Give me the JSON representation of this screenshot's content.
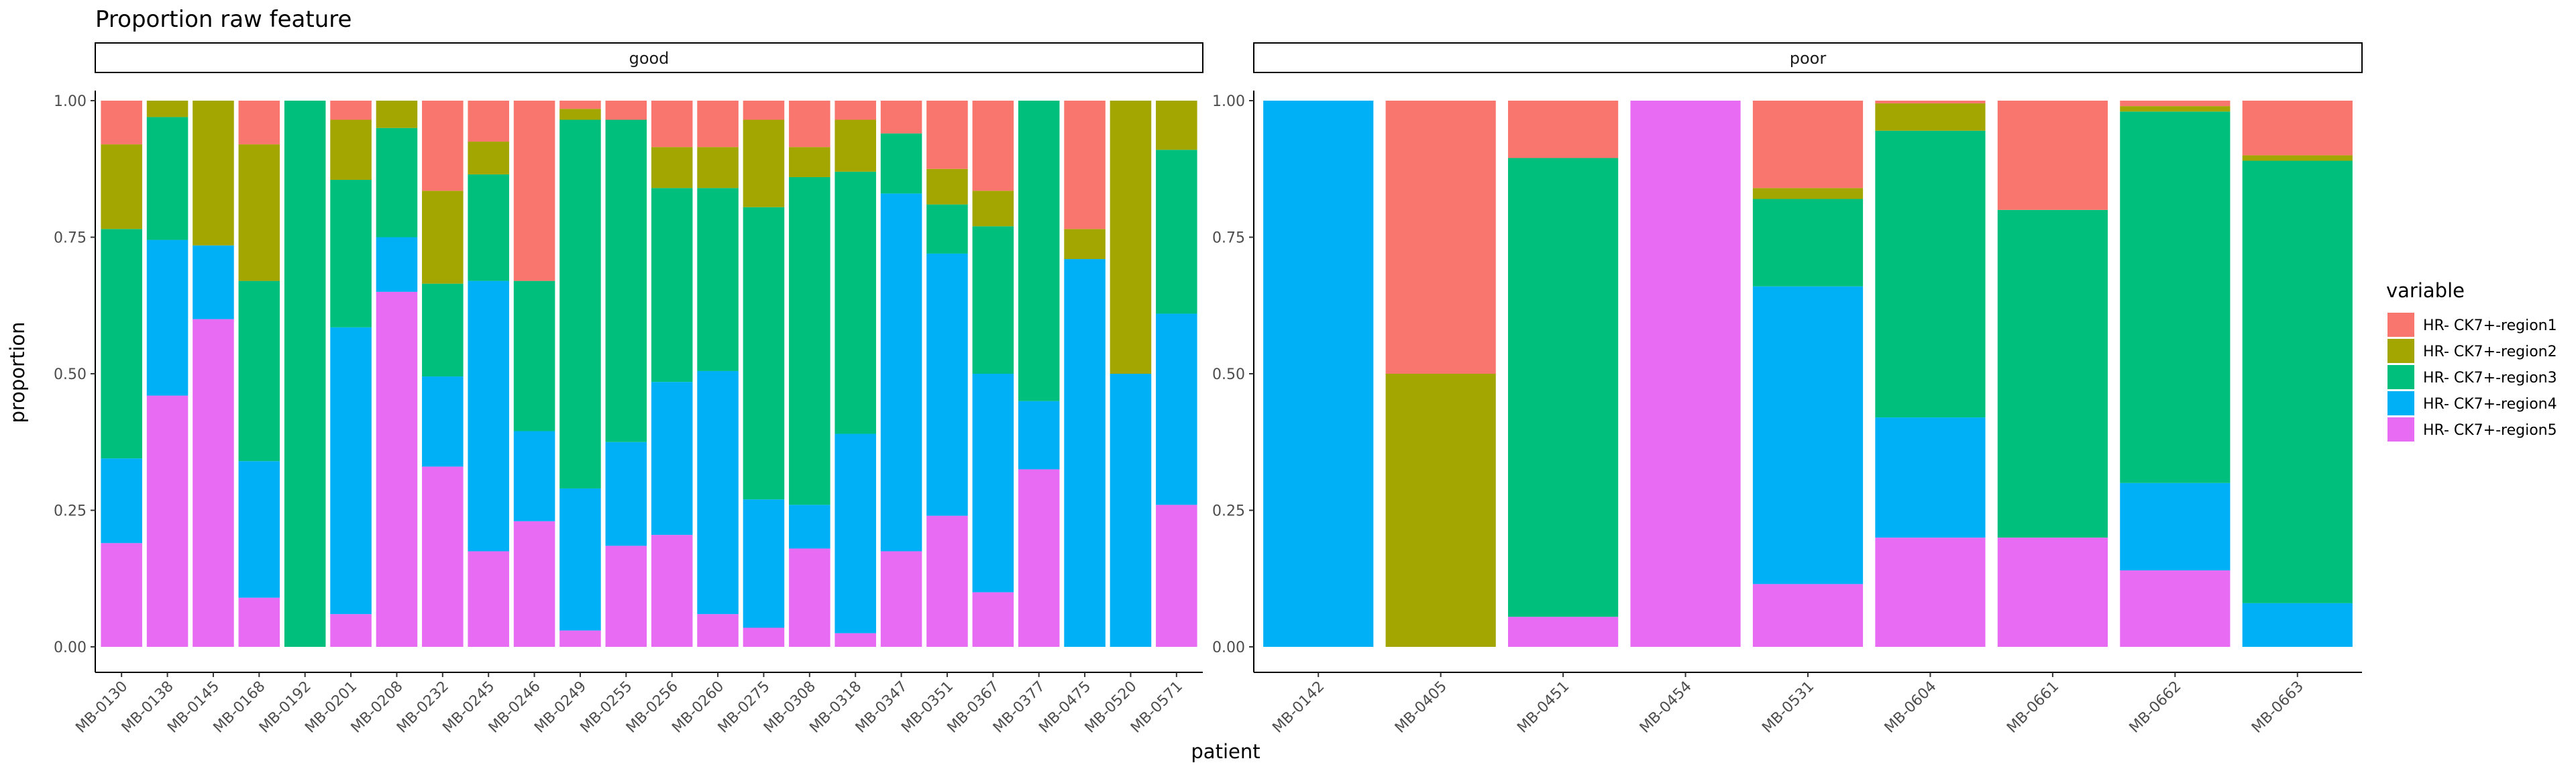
{
  "chart_data": {
    "type": "bar",
    "stacked": true,
    "title": "Proportion raw feature",
    "xlabel": "patient",
    "ylabel": "proportion",
    "ylim": [
      0,
      1
    ],
    "yticks": [
      "0.00",
      "0.25",
      "0.50",
      "0.75",
      "1.00"
    ],
    "legend": {
      "title": "variable",
      "position": "right",
      "entries": [
        "HR- CK7+-region1",
        "HR- CK7+-region2",
        "HR- CK7+-region3",
        "HR- CK7+-region4",
        "HR- CK7+-region5"
      ]
    },
    "colors": [
      "#F8766D",
      "#A3A500",
      "#00BF7D",
      "#00B0F6",
      "#E76BF3"
    ],
    "stack_order": "region5 at bottom, region1 at top",
    "facets": [
      {
        "label": "good",
        "categories": [
          "MB-0130",
          "MB-0138",
          "MB-0145",
          "MB-0168",
          "MB-0192",
          "MB-0201",
          "MB-0208",
          "MB-0232",
          "MB-0245",
          "MB-0246",
          "MB-0249",
          "MB-0255",
          "MB-0256",
          "MB-0260",
          "MB-0275",
          "MB-0308",
          "MB-0318",
          "MB-0347",
          "MB-0351",
          "MB-0367",
          "MB-0377",
          "MB-0475",
          "MB-0520",
          "MB-0571"
        ],
        "series": [
          {
            "name": "HR- CK7+-region1",
            "values": [
              0.08,
              0.0,
              0.0,
              0.08,
              0.0,
              0.035,
              0.0,
              0.165,
              0.075,
              0.33,
              0.015,
              0.035,
              0.085,
              0.085,
              0.035,
              0.085,
              0.035,
              0.06,
              0.125,
              0.165,
              0.0,
              0.235,
              0.0,
              0.0
            ]
          },
          {
            "name": "HR- CK7+-region2",
            "values": [
              0.155,
              0.03,
              0.265,
              0.25,
              0.0,
              0.11,
              0.05,
              0.17,
              0.06,
              0.0,
              0.02,
              0.0,
              0.075,
              0.075,
              0.16,
              0.055,
              0.095,
              0.0,
              0.065,
              0.065,
              0.0,
              0.055,
              0.5,
              0.09
            ]
          },
          {
            "name": "HR- CK7+-region3",
            "values": [
              0.42,
              0.225,
              0.0,
              0.33,
              1.0,
              0.27,
              0.2,
              0.17,
              0.195,
              0.275,
              0.675,
              0.59,
              0.355,
              0.335,
              0.535,
              0.6,
              0.48,
              0.11,
              0.09,
              0.27,
              0.55,
              0.0,
              0.0,
              0.3
            ]
          },
          {
            "name": "HR- CK7+-region4",
            "values": [
              0.155,
              0.285,
              0.135,
              0.25,
              0.0,
              0.525,
              0.1,
              0.165,
              0.495,
              0.165,
              0.26,
              0.19,
              0.28,
              0.445,
              0.235,
              0.08,
              0.365,
              0.655,
              0.48,
              0.4,
              0.125,
              0.71,
              0.5,
              0.35
            ]
          },
          {
            "name": "HR- CK7+-region5",
            "values": [
              0.19,
              0.46,
              0.6,
              0.09,
              0.0,
              0.06,
              0.65,
              0.33,
              0.175,
              0.23,
              0.03,
              0.185,
              0.205,
              0.06,
              0.035,
              0.18,
              0.025,
              0.175,
              0.24,
              0.1,
              0.325,
              0.0,
              0.0,
              0.26
            ]
          }
        ]
      },
      {
        "label": "poor",
        "categories": [
          "MB-0142",
          "MB-0405",
          "MB-0451",
          "MB-0454",
          "MB-0531",
          "MB-0604",
          "MB-0661",
          "MB-0662",
          "MB-0663"
        ],
        "series": [
          {
            "name": "HR- CK7+-region1",
            "values": [
              0.0,
              0.5,
              0.105,
              0.0,
              0.16,
              0.005,
              0.2,
              0.01,
              0.1
            ]
          },
          {
            "name": "HR- CK7+-region2",
            "values": [
              0.0,
              0.5,
              0.0,
              0.0,
              0.02,
              0.05,
              0.0,
              0.01,
              0.01
            ]
          },
          {
            "name": "HR- CK7+-region3",
            "values": [
              0.0,
              0.0,
              0.84,
              0.0,
              0.16,
              0.525,
              0.6,
              0.68,
              0.81
            ]
          },
          {
            "name": "HR- CK7+-region4",
            "values": [
              1.0,
              0.0,
              0.0,
              0.0,
              0.545,
              0.22,
              0.0,
              0.16,
              0.08
            ]
          },
          {
            "name": "HR- CK7+-region5",
            "values": [
              0.0,
              0.0,
              0.055,
              1.0,
              0.115,
              0.2,
              0.2,
              0.14,
              0.0
            ]
          }
        ]
      }
    ]
  }
}
